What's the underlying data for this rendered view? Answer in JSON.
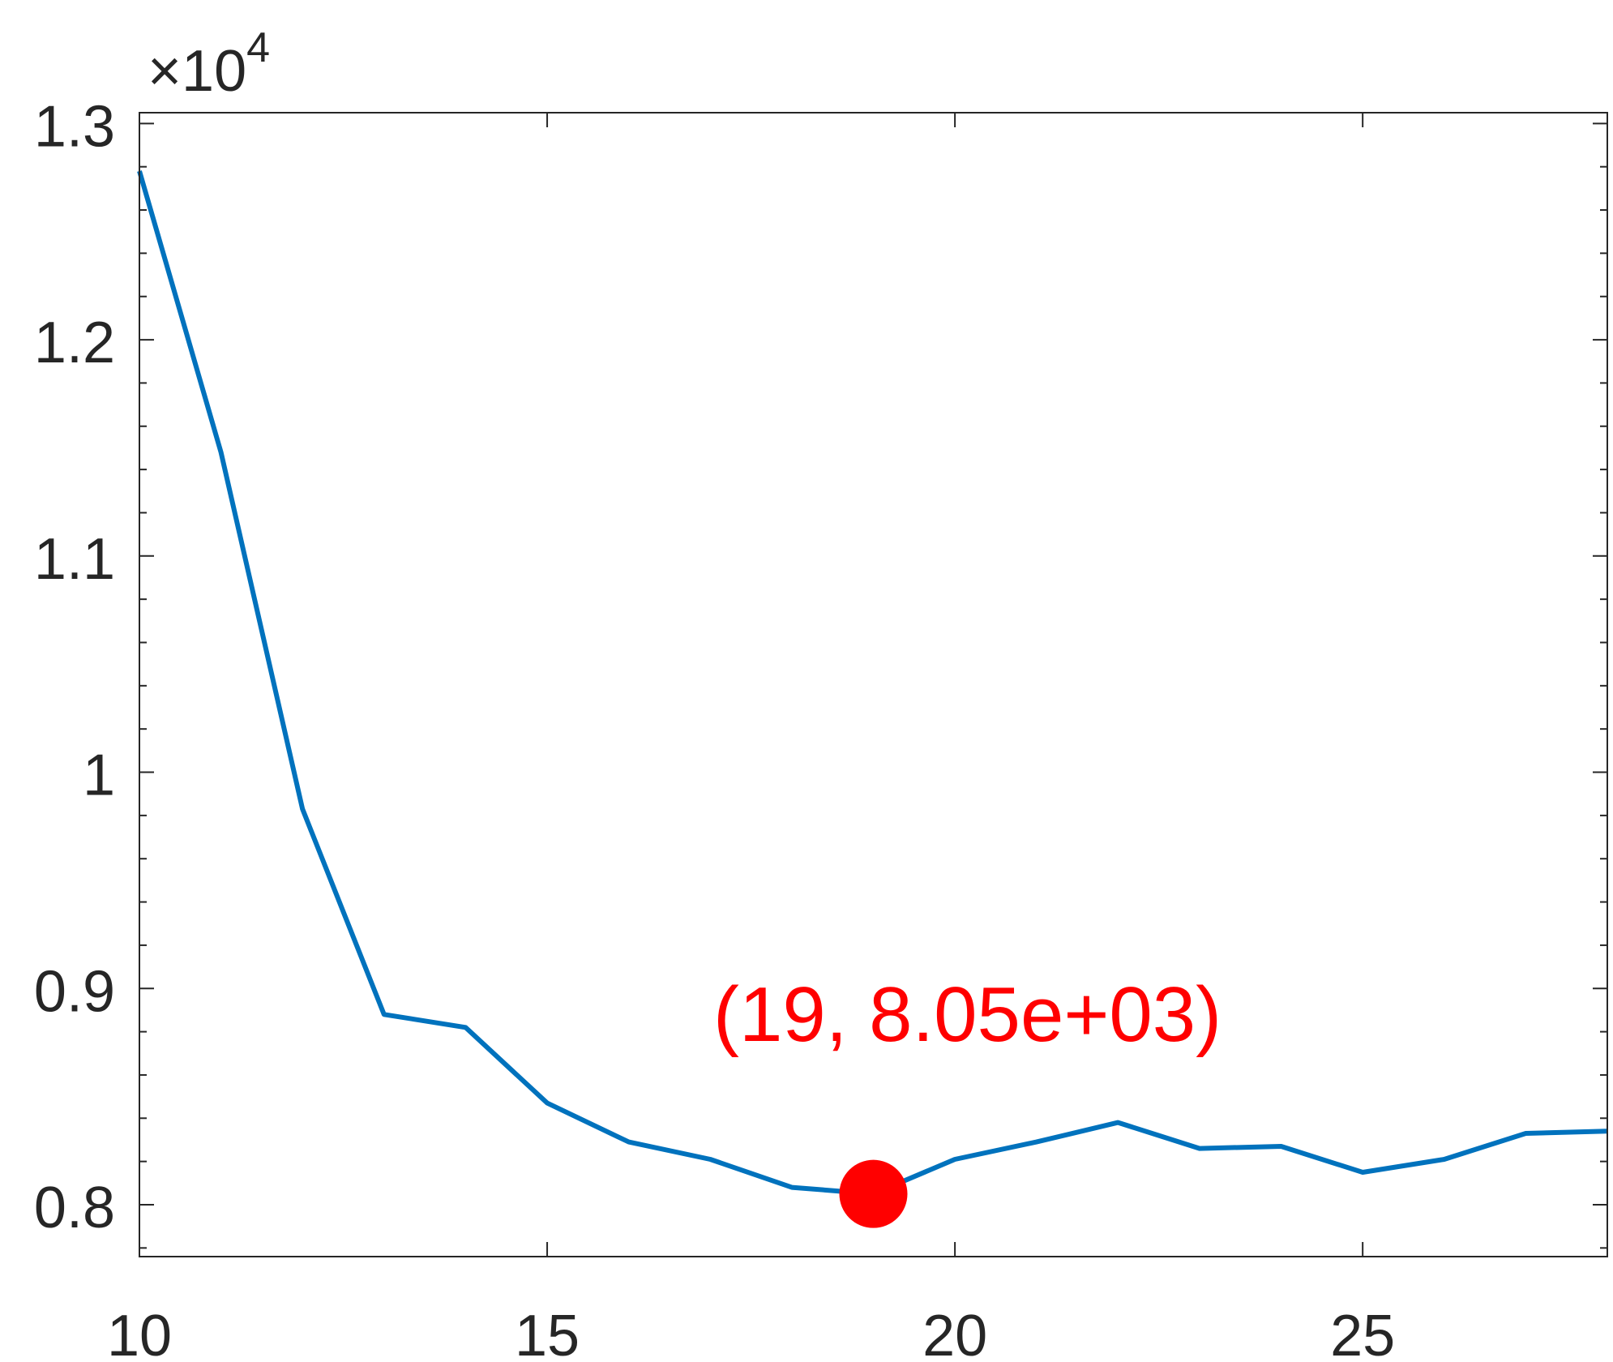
{
  "chart_data": {
    "type": "line",
    "title": "",
    "xlabel": "",
    "ylabel": "",
    "xlim": [
      10,
      28
    ],
    "ylim": [
      7760,
      13050
    ],
    "y_exponent_label": {
      "base": "×10",
      "exp": "4"
    },
    "x_ticks": [
      10,
      15,
      20,
      25
    ],
    "x_tick_labels": [
      "10",
      "15",
      "20",
      "25"
    ],
    "y_ticks": [
      8000,
      9000,
      10000,
      11000,
      12000,
      13000
    ],
    "y_tick_labels": [
      "0.8",
      "0.9",
      "1",
      "1.1",
      "1.2",
      "1.3"
    ],
    "grid": false,
    "series": [
      {
        "color": "#0072bd",
        "x": [
          10,
          11,
          12,
          13,
          14,
          15,
          16,
          17,
          18,
          19,
          20,
          21,
          22,
          23,
          24,
          25,
          26,
          27,
          28
        ],
        "y": [
          12780,
          11480,
          9830,
          8880,
          8820,
          8470,
          8290,
          8210,
          8080,
          8050,
          8210,
          8290,
          8380,
          8260,
          8270,
          8150,
          8210,
          8330,
          8340
        ]
      }
    ],
    "highlight": {
      "x": 19,
      "y": 8050,
      "color": "#ff0000",
      "label": "(19, 8.05e+03)"
    }
  }
}
